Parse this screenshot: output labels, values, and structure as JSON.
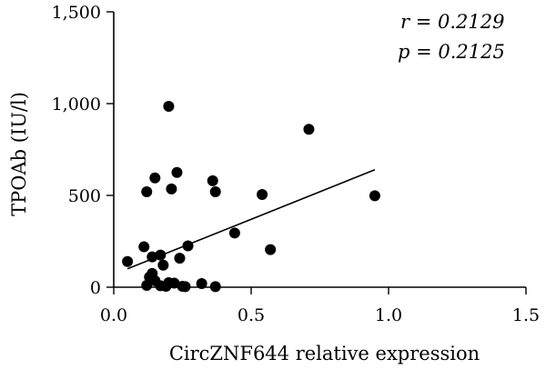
{
  "chart_data": {
    "type": "scatter",
    "title": "",
    "xlabel": "CircZNF644 relative expression",
    "ylabel": "TPOAb (IU/l)",
    "xlim": [
      0,
      1.5
    ],
    "ylim": [
      0,
      1500
    ],
    "x_ticks": [
      0.0,
      0.5,
      1.0,
      1.5
    ],
    "x_tick_labels": [
      "0.0",
      "0.5",
      "1.0",
      "1.5"
    ],
    "y_ticks": [
      0,
      500,
      1000,
      1500
    ],
    "y_tick_labels": [
      "0",
      "500",
      "1,000",
      "1,500"
    ],
    "grid": false,
    "annotations": {
      "r": "r = 0.2129",
      "p": "p = 0.2125"
    },
    "series": [
      {
        "points": [
          {
            "x": 0.2,
            "y": 985
          },
          {
            "x": 0.71,
            "y": 860
          },
          {
            "x": 0.23,
            "y": 625
          },
          {
            "x": 0.15,
            "y": 595
          },
          {
            "x": 0.36,
            "y": 580
          },
          {
            "x": 0.21,
            "y": 535
          },
          {
            "x": 0.12,
            "y": 520
          },
          {
            "x": 0.37,
            "y": 520
          },
          {
            "x": 0.54,
            "y": 505
          },
          {
            "x": 0.95,
            "y": 498
          },
          {
            "x": 0.44,
            "y": 295
          },
          {
            "x": 0.27,
            "y": 225
          },
          {
            "x": 0.11,
            "y": 220
          },
          {
            "x": 0.57,
            "y": 205
          },
          {
            "x": 0.17,
            "y": 175
          },
          {
            "x": 0.14,
            "y": 165
          },
          {
            "x": 0.24,
            "y": 158
          },
          {
            "x": 0.05,
            "y": 140
          },
          {
            "x": 0.18,
            "y": 120
          },
          {
            "x": 0.14,
            "y": 75
          },
          {
            "x": 0.13,
            "y": 55
          },
          {
            "x": 0.15,
            "y": 35
          },
          {
            "x": 0.2,
            "y": 25
          },
          {
            "x": 0.22,
            "y": 22
          },
          {
            "x": 0.32,
            "y": 20
          },
          {
            "x": 0.12,
            "y": 10
          },
          {
            "x": 0.17,
            "y": 8
          },
          {
            "x": 0.19,
            "y": 5
          },
          {
            "x": 0.25,
            "y": 5
          },
          {
            "x": 0.26,
            "y": 3
          },
          {
            "x": 0.37,
            "y": 3
          }
        ]
      }
    ],
    "fit_line": {
      "x": [
        0.05,
        0.95
      ],
      "y": [
        100,
        640
      ]
    }
  }
}
